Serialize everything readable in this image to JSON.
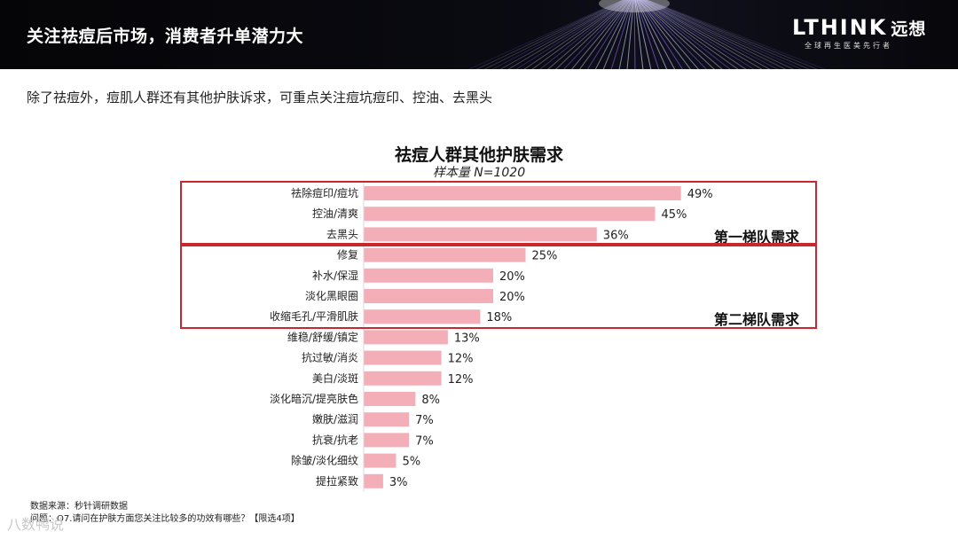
{
  "header": {
    "title": "关注祛痘后市场，消费者升单潜力大",
    "logo_text": "LTHINK",
    "logo_cn": "远想",
    "logo_tagline": "全球再生医美先行者"
  },
  "subtitle": "除了祛痘外，痘肌人群还有其他护肤诉求，可重点关注痘坑痘印、控油、去黑头",
  "chart_data": {
    "type": "bar",
    "orientation": "horizontal",
    "title": "祛痘人群其他护肤需求",
    "sample": "样本量 N=1020",
    "categories": [
      "祛除痘印/痘坑",
      "控油/清爽",
      "去黑头",
      "修复",
      "补水/保湿",
      "淡化黑眼圈",
      "收缩毛孔/平滑肌肤",
      "维稳/舒缓/镇定",
      "抗过敏/消炎",
      "美白/淡斑",
      "淡化暗沉/提亮肤色",
      "嫩肤/滋润",
      "抗衰/抗老",
      "除皱/淡化细纹",
      "提拉紧致"
    ],
    "values": [
      49,
      45,
      36,
      25,
      20,
      20,
      18,
      13,
      12,
      12,
      8,
      7,
      7,
      5,
      3
    ],
    "value_suffix": "%",
    "bar_color": "#f4aeb8",
    "groups": [
      {
        "label": "第一梯队需求",
        "first": 0,
        "last": 2
      },
      {
        "label": "第二梯队需求",
        "first": 3,
        "last": 6
      }
    ],
    "group_border_color": "#c8282d"
  },
  "footer": {
    "source": "数据来源：秒针调研数据",
    "question": "问题：Q7.请问在护肤方面您关注比较多的功效有哪些？【限选4项】"
  },
  "watermark": "八数鸭说"
}
